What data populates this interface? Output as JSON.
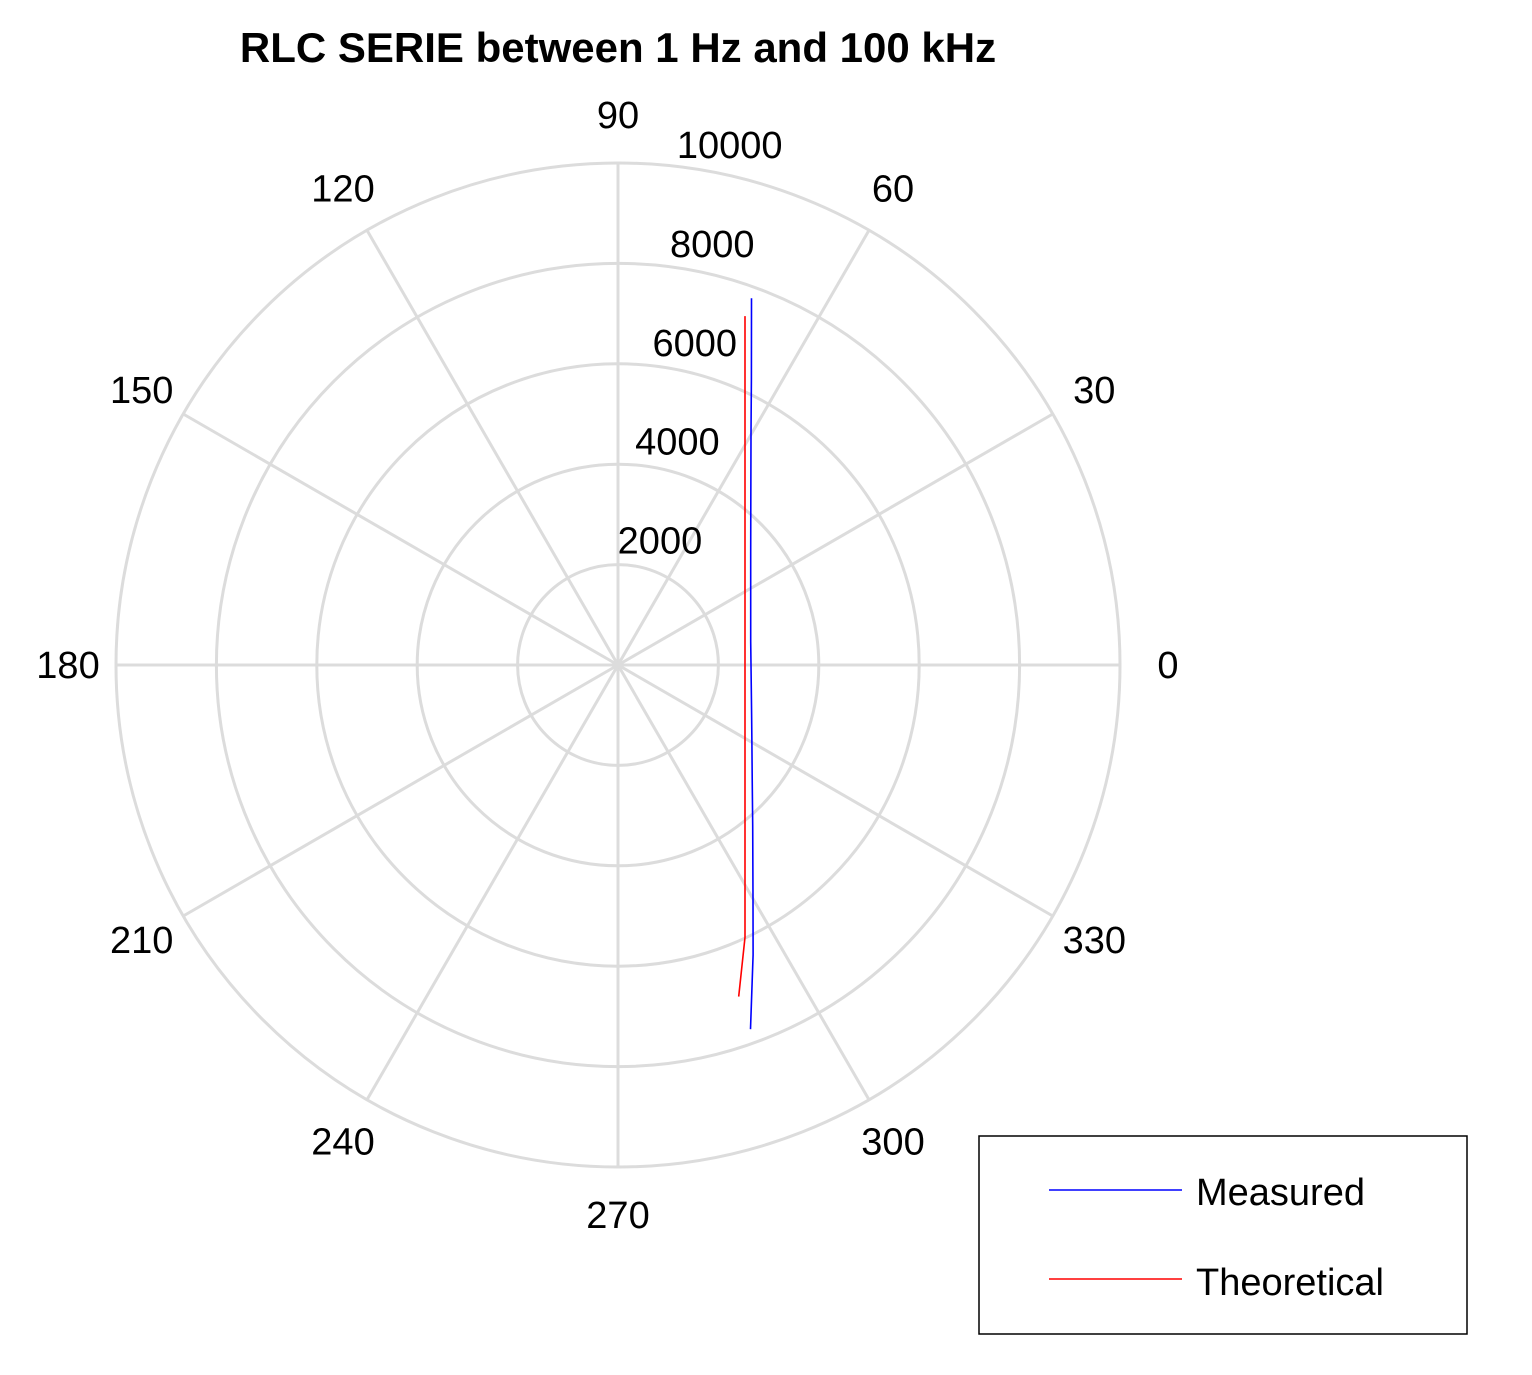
{
  "chart_data": {
    "type": "polar-line",
    "title": "RLC SERIE between 1 Hz and 100 kHz",
    "angle_units": "degrees",
    "angle_ticks": [
      0,
      30,
      60,
      90,
      120,
      150,
      180,
      210,
      240,
      270,
      300,
      330
    ],
    "angle_tick_labels": [
      "0",
      "30",
      "60",
      "90",
      "120",
      "150",
      "180",
      "210",
      "240",
      "270",
      "300",
      "330"
    ],
    "radius_range": [
      0,
      10000
    ],
    "radius_ticks": [
      2000,
      4000,
      6000,
      8000,
      10000
    ],
    "radius_tick_labels": [
      "2000",
      "4000",
      "6000",
      "8000",
      "10000"
    ],
    "grid": true,
    "legend_position": "bottom-right",
    "series": [
      {
        "name": "Measured",
        "color": "#0000ff",
        "points": [
          {
            "angle": 70.0,
            "r": 7775
          },
          {
            "angle": 65.0,
            "r": 6286
          },
          {
            "angle": 60.0,
            "r": 5300
          },
          {
            "angle": 50.0,
            "r": 4114
          },
          {
            "angle": 40.0,
            "r": 3450
          },
          {
            "angle": 30.0,
            "r": 3053
          },
          {
            "angle": 20.0,
            "r": 2813
          },
          {
            "angle": 10.0,
            "r": 2684
          },
          {
            "angle": 0.0,
            "r": 2650
          },
          {
            "angle": -10.0,
            "r": 2696
          },
          {
            "angle": -20.0,
            "r": 2832
          },
          {
            "angle": -30.0,
            "r": 3080
          },
          {
            "angle": -40.0,
            "r": 3490
          },
          {
            "angle": -50.0,
            "r": 4173
          },
          {
            "angle": -60.0,
            "r": 5380
          },
          {
            "angle": -65.0,
            "r": 6370
          },
          {
            "angle": -70.0,
            "r": 7720
          }
        ]
      },
      {
        "name": "Theoretical",
        "color": "#ff0000",
        "points": [
          {
            "angle": 70.0,
            "r": 7397
          },
          {
            "angle": 65.0,
            "r": 5986
          },
          {
            "angle": 60.0,
            "r": 5060
          },
          {
            "angle": 50.0,
            "r": 3937
          },
          {
            "angle": 40.0,
            "r": 3303
          },
          {
            "angle": 30.0,
            "r": 2922
          },
          {
            "angle": 20.0,
            "r": 2693
          },
          {
            "angle": 10.0,
            "r": 2569
          },
          {
            "angle": 0.0,
            "r": 2530
          },
          {
            "angle": -10.0,
            "r": 2569
          },
          {
            "angle": -20.0,
            "r": 2693
          },
          {
            "angle": -30.0,
            "r": 2922
          },
          {
            "angle": -40.0,
            "r": 3303
          },
          {
            "angle": -50.0,
            "r": 3937
          },
          {
            "angle": -60.0,
            "r": 5060
          },
          {
            "angle": -65.0,
            "r": 5986
          },
          {
            "angle": -70.0,
            "r": 7030
          }
        ]
      }
    ]
  }
}
